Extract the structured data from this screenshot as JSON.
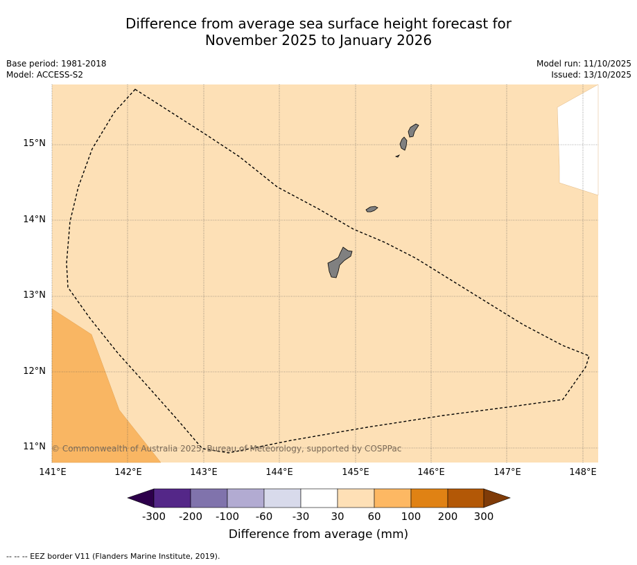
{
  "title": {
    "line1": "Difference from average sea surface height forecast for",
    "line2": "November 2025 to January 2026"
  },
  "meta": {
    "base_period": "Base period: 1981-2018",
    "model": "Model: ACCESS-S2",
    "model_run": "Model run: 11/10/2025",
    "issued": "Issued: 13/10/2025"
  },
  "map": {
    "latitude_labels": [
      "15°N",
      "14°N",
      "13°N",
      "12°N",
      "11°N"
    ],
    "longitude_labels": [
      "141°E",
      "142°E",
      "143°E",
      "144°E",
      "145°E",
      "146°E",
      "147°E",
      "148°E"
    ],
    "copyright": "© Commonwealth of Australia 2025, Bureau of Meteorology, supported by COSPPac",
    "colors": {
      "band_30_60": "#fde0b6",
      "band_60_100": "#f9b663",
      "band_-30_30": "#ffffff",
      "land": "#808080",
      "grid": "#555555"
    }
  },
  "colorbar": {
    "ticks": [
      "-300",
      "-200",
      "-100",
      "-60",
      "-30",
      "30",
      "60",
      "100",
      "200",
      "300"
    ],
    "colors": [
      "#2d004b",
      "#542788",
      "#8073ac",
      "#b2abd2",
      "#d8daeb",
      "#ffffff",
      "#fee0b6",
      "#fdb863",
      "#e08214",
      "#b35806",
      "#7f3b08"
    ],
    "label": "Difference from average (mm)"
  },
  "footnote": "--  --  -- EEZ border V11 (Flanders Marine Institute, 2019)."
}
